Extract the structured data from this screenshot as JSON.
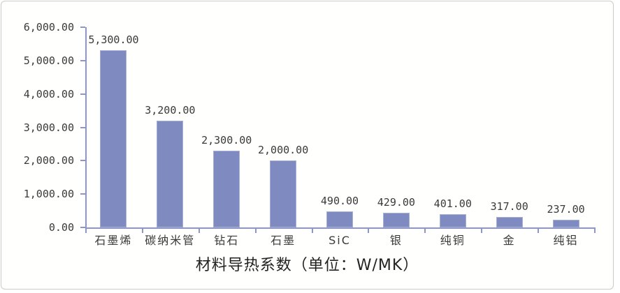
{
  "frame": {
    "background": "#fffffe",
    "border_color": "#cbcbcb"
  },
  "chart_data": {
    "type": "bar",
    "title": "材料导热系数（单位：W/MK）",
    "categories": [
      "石墨烯",
      "碳纳米管",
      "钻石",
      "石墨",
      "SiC",
      "银",
      "纯铜",
      "金",
      "纯铝"
    ],
    "values": [
      5300,
      3200,
      2300,
      2000,
      490,
      429,
      401,
      317,
      237
    ],
    "value_labels": [
      "5,300.00",
      "3,200.00",
      "2,300.00",
      "2,000.00",
      "490.00",
      "429.00",
      "401.00",
      "317.00",
      "237.00"
    ],
    "xlabel": "",
    "ylabel": "",
    "ylim": [
      0,
      6000
    ],
    "ytick_interval": 1000,
    "ytick_labels": [
      "0.00",
      "1,000.00",
      "2,000.00",
      "3,000.00",
      "4,000.00",
      "5,000.00",
      "6,000.00"
    ],
    "grid": false,
    "legend": "none",
    "bar_color": "#7f8bc0",
    "bar_border_color": "#a9b0d6",
    "axis_color": "#8e96c6",
    "text_color": "#3a3a3a"
  }
}
